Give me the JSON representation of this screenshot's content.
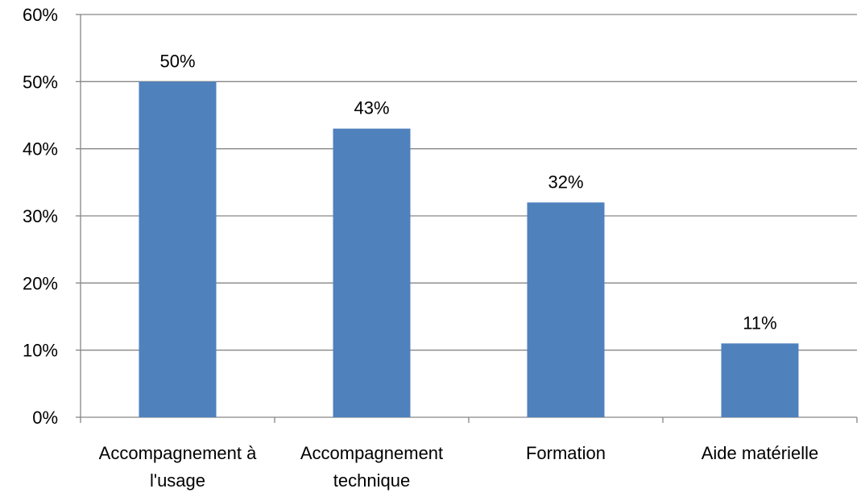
{
  "chart_data": {
    "type": "bar",
    "categories": [
      [
        "Accompagnement à",
        "l'usage"
      ],
      [
        "Accompagnement",
        "technique"
      ],
      [
        "Formation"
      ],
      [
        "Aide matérielle"
      ]
    ],
    "values": [
      50,
      43,
      32,
      11
    ],
    "data_labels": [
      "50%",
      "43%",
      "32%",
      "11%"
    ],
    "ylim": [
      0,
      60
    ],
    "y_ticks": [
      0,
      10,
      20,
      30,
      40,
      50,
      60
    ],
    "y_tick_labels": [
      "0%",
      "10%",
      "20%",
      "30%",
      "40%",
      "50%",
      "60%"
    ],
    "grid": true,
    "legend": "none",
    "title": "",
    "xlabel": "",
    "ylabel": ""
  },
  "colors": {
    "bar": "#4F81BD",
    "grid": "#868686",
    "axis": "#868686"
  }
}
